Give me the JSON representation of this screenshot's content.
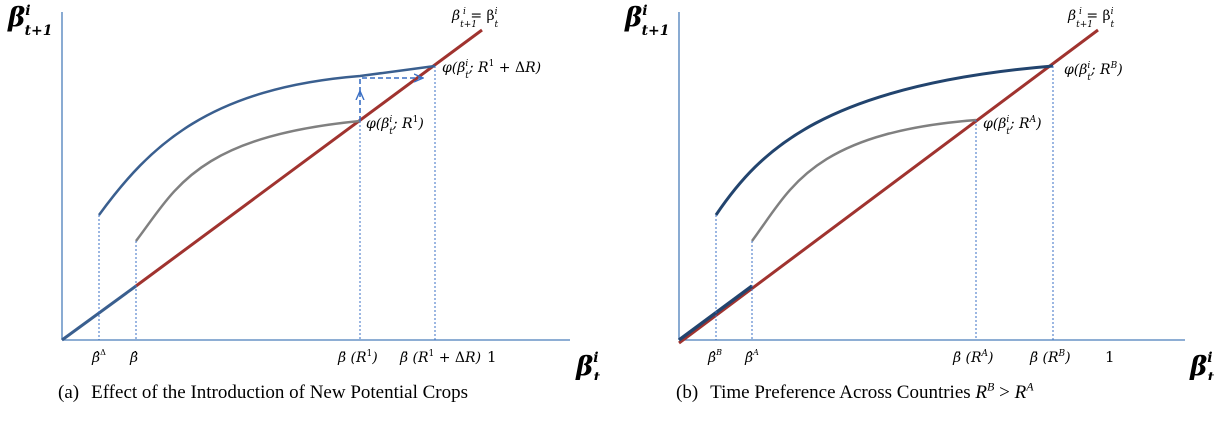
{
  "colors": {
    "axis": "#4a7ebb",
    "diagonal": "#a0332f",
    "upper_curve": "#3a5f8f",
    "lower_curve": "#808080",
    "guide_lines": "#3a6fc4"
  },
  "panel_a": {
    "y_axis_label": {
      "base": "β",
      "sup": "i",
      "sub": "t+1"
    },
    "x_axis_label": {
      "base": "β",
      "sup": "i",
      "sub": "t"
    },
    "diagonal_label": "β^i_{t+1} = β^i_t",
    "upper_curve_label": "φ(β^i_t; R^1 + ΔR)",
    "lower_curve_label": "φ(β^i_t; R^1)",
    "x_ticks": [
      "β̂^Δ",
      "β̂",
      "β̄(R^1)",
      "β̄(R^1 + ΔR)",
      "1"
    ],
    "caption_tag": "(a)",
    "caption_text": "Effect of the Introduction of New Potential Crops"
  },
  "panel_b": {
    "y_axis_label": {
      "base": "β",
      "sup": "i",
      "sub": "t+1"
    },
    "x_axis_label": {
      "base": "β",
      "sup": "i",
      "sub": "t"
    },
    "diagonal_label": "β^i_{t+1} = β^i_t",
    "upper_curve_label": "φ(β^i_t; R^B)",
    "lower_curve_label": "φ(β^i_t; R^A)",
    "x_ticks": [
      "β̂^B",
      "β̂^A",
      "β̄(R^A)",
      "β̄(R^B)",
      "1"
    ],
    "caption_tag": "(b)",
    "caption_text": "Time Preference Across Countries",
    "caption_math": {
      "lhs": "R",
      "lhs_sup": "B",
      "op": " > ",
      "rhs": "R",
      "rhs_sup": "A"
    }
  }
}
